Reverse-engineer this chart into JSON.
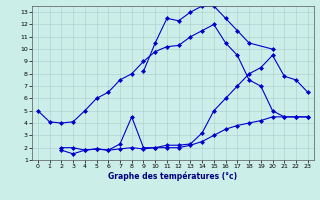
{
  "title": "Graphe des températures (°c)",
  "xlim": [
    -0.5,
    23.5
  ],
  "ylim": [
    1,
    13.5
  ],
  "xticks": [
    0,
    1,
    2,
    3,
    4,
    5,
    6,
    7,
    8,
    9,
    10,
    11,
    12,
    13,
    14,
    15,
    16,
    17,
    18,
    19,
    20,
    21,
    22,
    23
  ],
  "yticks": [
    1,
    2,
    3,
    4,
    5,
    6,
    7,
    8,
    9,
    10,
    11,
    12,
    13
  ],
  "background_color": "#cceee8",
  "grid_color": "#aacccc",
  "line_color": "#0000cc",
  "line1_x": [
    0,
    1,
    2,
    3,
    4,
    5,
    6,
    7,
    8,
    9,
    10,
    11,
    12,
    13,
    14,
    15,
    16,
    17,
    18,
    19,
    20,
    21,
    22,
    23
  ],
  "line1_y": [
    5.0,
    4.1,
    4.0,
    4.1,
    5.0,
    6.0,
    6.5,
    7.5,
    8.0,
    9.0,
    9.8,
    10.2,
    10.3,
    11.0,
    11.5,
    12.0,
    10.5,
    9.5,
    7.5,
    7.0,
    5.0,
    4.5,
    4.5,
    4.5
  ],
  "line2_x": [
    2,
    3,
    4,
    5,
    6,
    7,
    8,
    9,
    10,
    11,
    12,
    13,
    14,
    15,
    16,
    17,
    18,
    19,
    20,
    21,
    22,
    23
  ],
  "line2_y": [
    2.0,
    2.0,
    1.8,
    1.9,
    1.8,
    2.3,
    4.5,
    2.0,
    2.0,
    2.2,
    2.2,
    2.3,
    3.2,
    5.0,
    6.0,
    7.0,
    8.0,
    8.5,
    9.5,
    7.8,
    7.5,
    6.5
  ],
  "line3_x": [
    2,
    3,
    4,
    5,
    6,
    7,
    8,
    9,
    10,
    11,
    12,
    13,
    14,
    15,
    16,
    17,
    18,
    19,
    20,
    21,
    22,
    23
  ],
  "line3_y": [
    1.8,
    1.5,
    1.8,
    1.9,
    1.8,
    1.9,
    2.0,
    1.9,
    2.0,
    2.0,
    2.0,
    2.2,
    2.5,
    3.0,
    3.5,
    3.8,
    4.0,
    4.2,
    4.5,
    4.5,
    4.5,
    4.5
  ],
  "line4_x": [
    9,
    10,
    11,
    12,
    13,
    14,
    15,
    16,
    17,
    18,
    20
  ],
  "line4_y": [
    8.2,
    10.5,
    12.5,
    12.3,
    13.0,
    13.5,
    13.5,
    12.5,
    11.5,
    10.5,
    10.0
  ]
}
